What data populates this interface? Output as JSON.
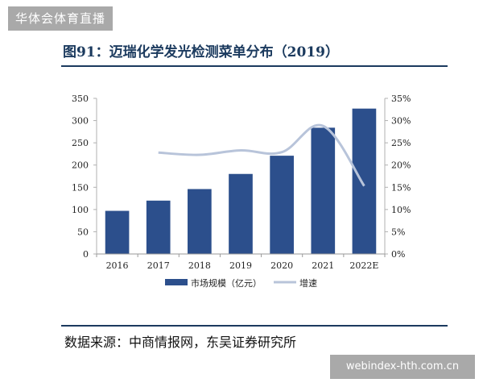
{
  "site_badge": "华体会体育直播",
  "figure_title": "图91：迈瑞化学发光检测菜单分布（2019）",
  "source_note": "数据来源：中商情报网，东吴证券研究所",
  "watermark": "webindex-hth.com.cn",
  "colors": {
    "bar": "#2c4f8c",
    "line": "#b8c4da",
    "title": "#1b3a5e",
    "badge": "#a9a9a9"
  },
  "chart_data": {
    "type": "bar",
    "categories": [
      "2016",
      "2017",
      "2018",
      "2019",
      "2020",
      "2021",
      "2022E"
    ],
    "series": [
      {
        "name": "市场规模（亿元）",
        "type": "bar",
        "axis": "left",
        "values": [
          97,
          120,
          146,
          180,
          221,
          284,
          327
        ]
      },
      {
        "name": "增速",
        "type": "line",
        "axis": "right",
        "values": [
          null,
          22.8,
          22.3,
          23.3,
          22.9,
          28.8,
          15.3
        ]
      }
    ],
    "ylim": [
      0,
      350
    ],
    "yticks": [
      0,
      50,
      100,
      150,
      200,
      250,
      300,
      350
    ],
    "y2lim": [
      0,
      35
    ],
    "y2ticks": [
      "0%",
      "5%",
      "10%",
      "15%",
      "20%",
      "25%",
      "30%",
      "35%"
    ],
    "legend_position": "bottom",
    "grid": false
  }
}
